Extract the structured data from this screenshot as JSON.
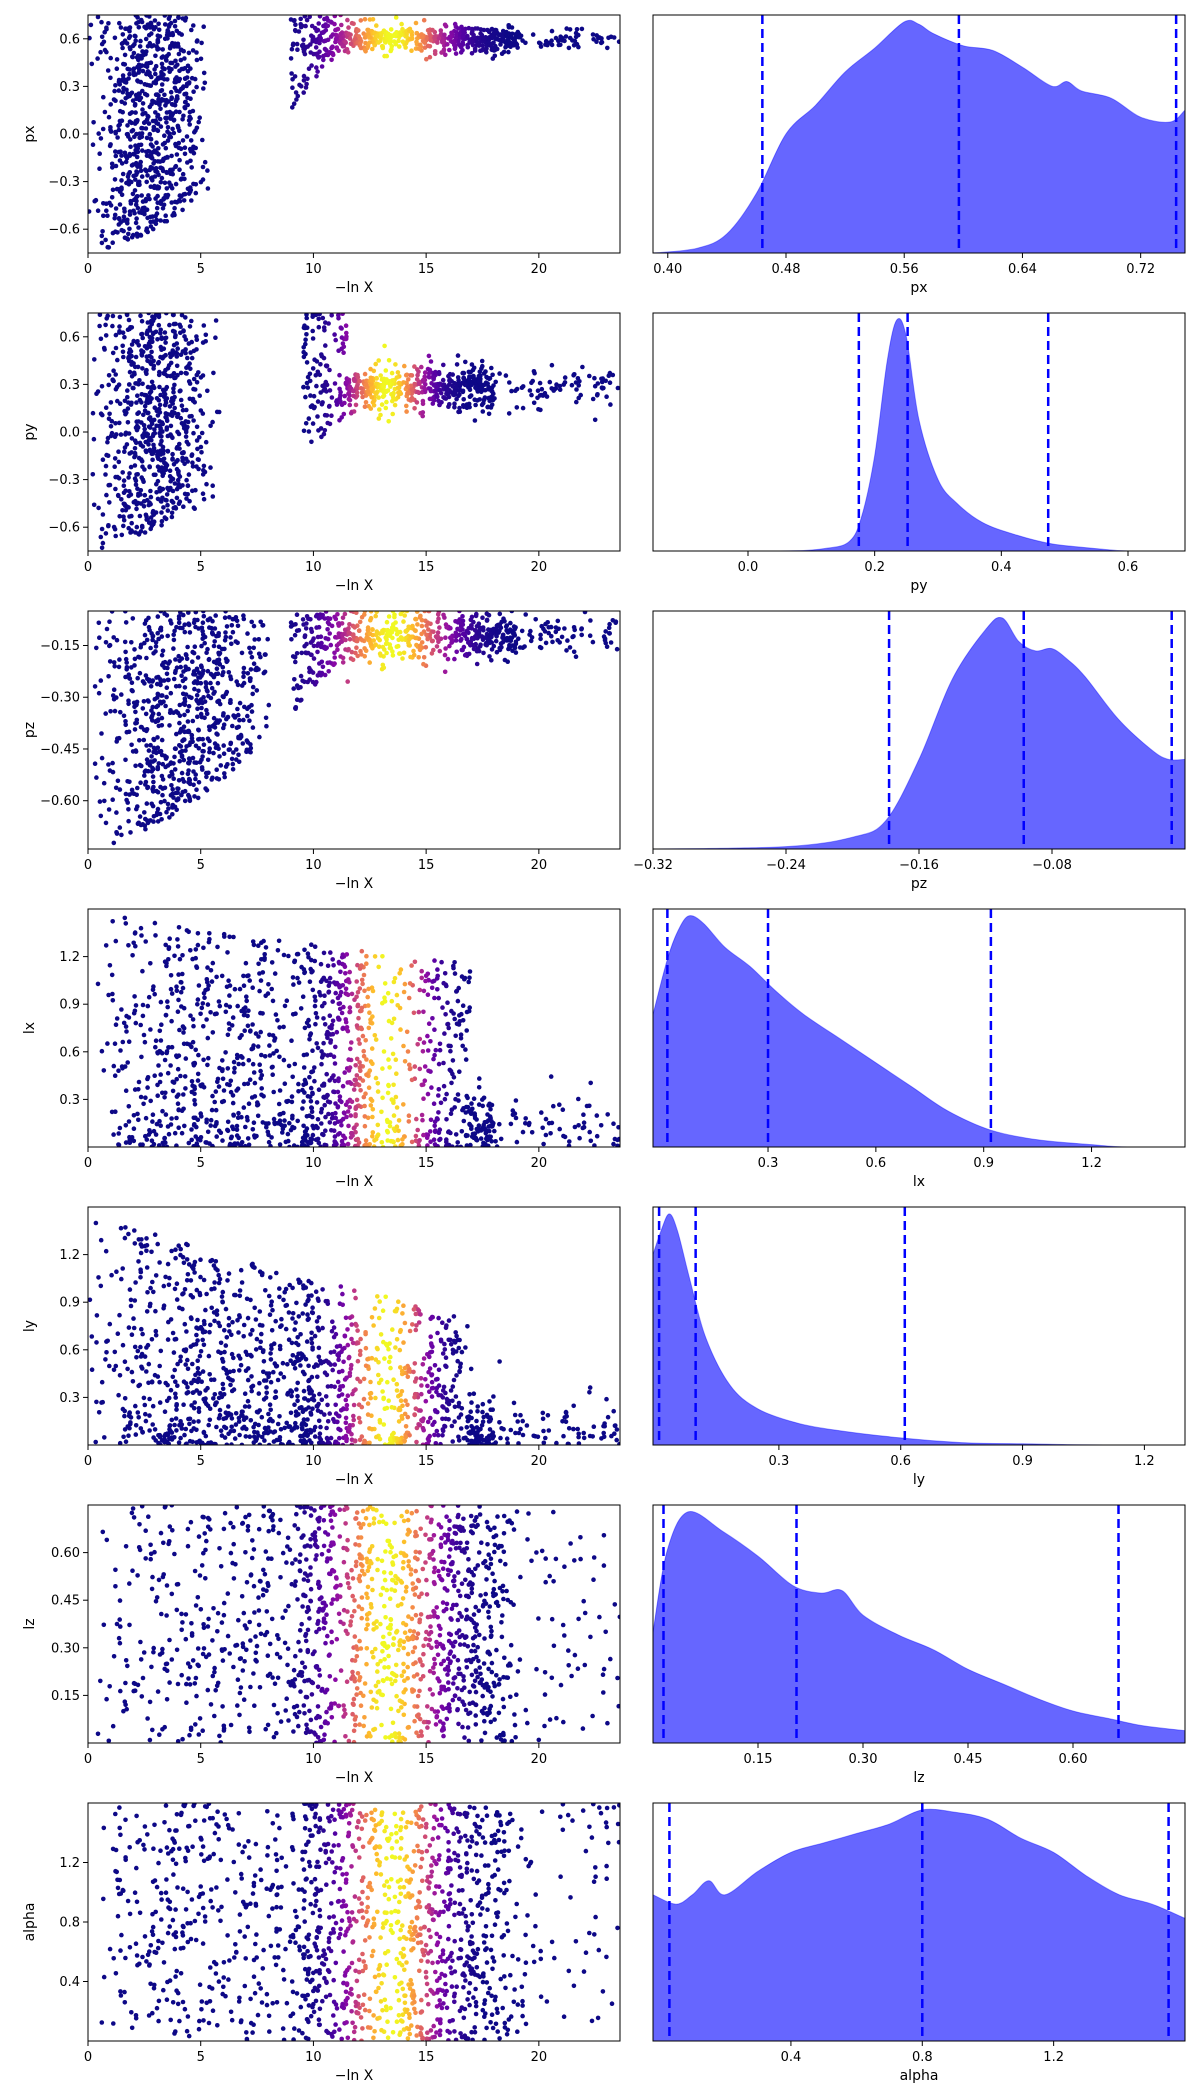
{
  "chart_data": [
    {
      "type": "scatter",
      "param": "px",
      "xlabel": "−ln X",
      "ylabel": "px",
      "xlim": [
        0,
        23.6
      ],
      "ylim": [
        -0.75,
        0.75
      ],
      "xticks": [
        0,
        5,
        10,
        15,
        20
      ],
      "xtick_labels": [
        "0",
        "5",
        "10",
        "15",
        "20"
      ],
      "yticks": [
        -0.6,
        -0.3,
        0.0,
        0.3,
        0.6
      ],
      "ytick_labels": [
        "−0.6",
        "−0.3",
        "0.0",
        "0.3",
        "0.6"
      ],
      "colormap": "plasma",
      "mode": "upper",
      "center": 0.6,
      "spread": 0.05,
      "lo": -0.75,
      "hi": 0.75,
      "heavy_x": 2.5,
      "bright_x": [
        11,
        16
      ],
      "tail_to": 23.6
    },
    {
      "type": "area",
      "param": "px",
      "xlabel": "px",
      "xlim": [
        0.39,
        0.75
      ],
      "xticks": [
        0.4,
        0.48,
        0.56,
        0.64,
        0.72
      ],
      "xtick_labels": [
        "0.40",
        "0.48",
        "0.56",
        "0.64",
        "0.72"
      ],
      "quantiles": [
        0.464,
        0.597,
        0.744
      ],
      "x": [
        0.39,
        0.42,
        0.44,
        0.46,
        0.48,
        0.5,
        0.52,
        0.54,
        0.56,
        0.57,
        0.58,
        0.6,
        0.62,
        0.64,
        0.66,
        0.67,
        0.68,
        0.7,
        0.72,
        0.74,
        0.75
      ],
      "y": [
        0.0,
        0.02,
        0.08,
        0.25,
        0.5,
        0.62,
        0.76,
        0.86,
        0.97,
        0.96,
        0.92,
        0.87,
        0.85,
        0.78,
        0.7,
        0.72,
        0.68,
        0.65,
        0.57,
        0.55,
        0.6
      ],
      "color": "#0000ff",
      "fill_opacity": 0.6
    },
    {
      "type": "scatter",
      "param": "py",
      "xlabel": "−ln X",
      "ylabel": "py",
      "xlim": [
        0,
        23.6
      ],
      "ylim": [
        -0.75,
        0.75
      ],
      "xticks": [
        0,
        5,
        10,
        15,
        20
      ],
      "xtick_labels": [
        "0",
        "5",
        "10",
        "15",
        "20"
      ],
      "yticks": [
        -0.6,
        -0.3,
        0.0,
        0.3,
        0.6
      ],
      "ytick_labels": [
        "−0.6",
        "−0.3",
        "0.0",
        "0.3",
        "0.6"
      ],
      "colormap": "plasma",
      "mode": "band",
      "center": 0.28,
      "spread": 0.07,
      "lo": -0.75,
      "hi": 0.75,
      "heavy_x": 3.0,
      "bright_x": [
        11.5,
        15
      ],
      "tail_to": 23.6
    },
    {
      "type": "area",
      "param": "py",
      "xlabel": "py",
      "xlim": [
        -0.15,
        0.69
      ],
      "xticks": [
        0.0,
        0.2,
        0.4,
        0.6
      ],
      "xtick_labels": [
        "0.0",
        "0.2",
        "0.4",
        "0.6"
      ],
      "quantiles": [
        0.175,
        0.252,
        0.474
      ],
      "x": [
        -0.15,
        0.05,
        0.12,
        0.16,
        0.18,
        0.2,
        0.22,
        0.235,
        0.25,
        0.27,
        0.3,
        0.33,
        0.37,
        0.42,
        0.48,
        0.55,
        0.6,
        0.69
      ],
      "y": [
        0.0,
        0.0,
        0.01,
        0.04,
        0.15,
        0.4,
        0.8,
        0.97,
        0.9,
        0.55,
        0.3,
        0.2,
        0.12,
        0.07,
        0.03,
        0.01,
        0.0,
        0.0
      ],
      "color": "#0000ff",
      "fill_opacity": 0.6
    },
    {
      "type": "scatter",
      "param": "pz",
      "xlabel": "−ln X",
      "ylabel": "pz",
      "xlim": [
        0,
        23.6
      ],
      "ylim": [
        -0.74,
        -0.05
      ],
      "xticks": [
        0,
        5,
        10,
        15,
        20
      ],
      "xtick_labels": [
        "0",
        "5",
        "10",
        "15",
        "20"
      ],
      "yticks": [
        -0.6,
        -0.45,
        -0.3,
        -0.15
      ],
      "ytick_labels": [
        "−0.60",
        "−0.45",
        "−0.30",
        "−0.15"
      ],
      "colormap": "plasma",
      "mode": "upper",
      "center": -0.12,
      "spread": 0.04,
      "lo": -0.74,
      "hi": -0.05,
      "heavy_x": 5.5,
      "bright_x": [
        11,
        16
      ],
      "tail_to": 23.6
    },
    {
      "type": "area",
      "param": "pz",
      "xlabel": "pz",
      "xlim": [
        -0.32,
        0.0
      ],
      "xticks": [
        -0.32,
        -0.24,
        -0.16,
        -0.08
      ],
      "xtick_labels": [
        "−0.32",
        "−0.24",
        "−0.16",
        "−0.08"
      ],
      "quantiles": [
        -0.178,
        -0.097,
        -0.008
      ],
      "x": [
        -0.32,
        -0.24,
        -0.2,
        -0.18,
        -0.16,
        -0.14,
        -0.12,
        -0.11,
        -0.1,
        -0.09,
        -0.08,
        -0.07,
        -0.06,
        -0.04,
        -0.02,
        -0.01,
        0.0
      ],
      "y": [
        0.0,
        0.01,
        0.05,
        0.12,
        0.38,
        0.72,
        0.93,
        0.98,
        0.88,
        0.84,
        0.85,
        0.8,
        0.73,
        0.55,
        0.42,
        0.38,
        0.38
      ],
      "color": "#0000ff",
      "fill_opacity": 0.6
    },
    {
      "type": "scatter",
      "param": "lx",
      "xlabel": "−ln X",
      "ylabel": "lx",
      "xlim": [
        0,
        23.6
      ],
      "ylim": [
        0,
        1.5
      ],
      "xticks": [
        0,
        5,
        10,
        15,
        20
      ],
      "xtick_labels": [
        "0",
        "5",
        "10",
        "15",
        "20"
      ],
      "yticks": [
        0.3,
        0.6,
        0.9,
        1.2
      ],
      "ytick_labels": [
        "0.3",
        "0.6",
        "0.9",
        "1.2"
      ],
      "colormap": "plasma",
      "mode": "lower",
      "center": 0.45,
      "spread": 0.3,
      "lo": 0.0,
      "hi": 1.5,
      "heavy_x": 11,
      "bright_x": [
        11.5,
        15
      ],
      "tail_to": 23.6
    },
    {
      "type": "area",
      "param": "lx",
      "xlabel": "lx",
      "xlim": [
        -0.02,
        1.46
      ],
      "xticks": [
        0.3,
        0.6,
        0.9,
        1.2
      ],
      "xtick_labels": [
        "0.3",
        "0.6",
        "0.9",
        "1.2"
      ],
      "quantiles": [
        0.02,
        0.3,
        0.92
      ],
      "x": [
        -0.02,
        0.02,
        0.05,
        0.08,
        0.12,
        0.18,
        0.25,
        0.32,
        0.4,
        0.5,
        0.6,
        0.7,
        0.8,
        0.92,
        1.05,
        1.2,
        1.3,
        1.46
      ],
      "y": [
        0.55,
        0.78,
        0.9,
        0.96,
        0.93,
        0.83,
        0.75,
        0.65,
        0.55,
        0.45,
        0.35,
        0.25,
        0.15,
        0.07,
        0.03,
        0.01,
        0.0,
        0.0
      ],
      "color": "#0000ff",
      "fill_opacity": 0.6
    },
    {
      "type": "scatter",
      "param": "ly",
      "xlabel": "−ln X",
      "ylabel": "ly",
      "xlim": [
        0,
        23.6
      ],
      "ylim": [
        0,
        1.5
      ],
      "xticks": [
        0,
        5,
        10,
        15,
        20
      ],
      "xtick_labels": [
        "0",
        "5",
        "10",
        "15",
        "20"
      ],
      "yticks": [
        0.3,
        0.6,
        0.9,
        1.2
      ],
      "ytick_labels": [
        "0.3",
        "0.6",
        "0.9",
        "1.2"
      ],
      "colormap": "plasma",
      "mode": "lower",
      "center": 0.1,
      "spread": 0.25,
      "lo": 0.0,
      "hi": 1.5,
      "heavy_x": 9,
      "bright_x": [
        11.5,
        15
      ],
      "tail_to": 23.6
    },
    {
      "type": "area",
      "param": "ly",
      "xlabel": "ly",
      "xlim": [
        -0.01,
        1.3
      ],
      "xticks": [
        0.3,
        0.6,
        0.9,
        1.2
      ],
      "xtick_labels": [
        "0.3",
        "0.6",
        "0.9",
        "1.2"
      ],
      "quantiles": [
        0.005,
        0.095,
        0.61
      ],
      "x": [
        -0.01,
        0.01,
        0.03,
        0.05,
        0.08,
        0.12,
        0.18,
        0.25,
        0.35,
        0.45,
        0.6,
        0.75,
        0.9,
        1.1,
        1.3
      ],
      "y": [
        0.8,
        0.9,
        0.97,
        0.9,
        0.7,
        0.45,
        0.25,
        0.15,
        0.09,
        0.06,
        0.03,
        0.01,
        0.005,
        0.0,
        0.0
      ],
      "color": "#0000ff",
      "fill_opacity": 0.6
    },
    {
      "type": "scatter",
      "param": "lz",
      "xlabel": "−ln X",
      "ylabel": "lz",
      "xlim": [
        0,
        23.6
      ],
      "ylim": [
        0,
        0.75
      ],
      "xticks": [
        0,
        5,
        10,
        15,
        20
      ],
      "xtick_labels": [
        "0",
        "5",
        "10",
        "15",
        "20"
      ],
      "yticks": [
        0.15,
        0.3,
        0.45,
        0.6
      ],
      "ytick_labels": [
        "0.15",
        "0.30",
        "0.45",
        "0.60"
      ],
      "colormap": "plasma",
      "mode": "uniform",
      "center": 0.3,
      "spread": 0.2,
      "lo": 0.0,
      "hi": 0.75,
      "heavy_x": 17,
      "bright_x": [
        11,
        15.5
      ],
      "tail_to": 23.6
    },
    {
      "type": "area",
      "param": "lz",
      "xlabel": "lz",
      "xlim": [
        0.0,
        0.76
      ],
      "xticks": [
        0.15,
        0.3,
        0.45,
        0.6
      ],
      "xtick_labels": [
        "0.15",
        "0.30",
        "0.45",
        "0.60"
      ],
      "quantiles": [
        0.015,
        0.205,
        0.665
      ],
      "x": [
        0.0,
        0.02,
        0.05,
        0.1,
        0.15,
        0.2,
        0.24,
        0.27,
        0.3,
        0.35,
        0.4,
        0.45,
        0.5,
        0.55,
        0.6,
        0.65,
        0.7,
        0.76
      ],
      "y": [
        0.45,
        0.78,
        0.94,
        0.86,
        0.76,
        0.64,
        0.61,
        0.62,
        0.52,
        0.44,
        0.38,
        0.3,
        0.24,
        0.18,
        0.13,
        0.1,
        0.07,
        0.05
      ],
      "color": "#0000ff",
      "fill_opacity": 0.6
    },
    {
      "type": "scatter",
      "param": "alpha",
      "xlabel": "−ln X",
      "ylabel": "alpha",
      "xlim": [
        0,
        23.6
      ],
      "ylim": [
        0,
        1.6
      ],
      "xticks": [
        0,
        5,
        10,
        15,
        20
      ],
      "xtick_labels": [
        "0",
        "5",
        "10",
        "15",
        "20"
      ],
      "yticks": [
        0.4,
        0.8,
        1.2
      ],
      "ytick_labels": [
        "0.4",
        "0.8",
        "1.2"
      ],
      "colormap": "plasma",
      "mode": "uniform",
      "center": 0.8,
      "spread": 0.5,
      "lo": 0.0,
      "hi": 1.6,
      "heavy_x": 17,
      "bright_x": [
        11.5,
        15.5
      ],
      "tail_to": 23.6
    },
    {
      "type": "area",
      "param": "alpha",
      "xlabel": "alpha",
      "xlim": [
        -0.02,
        1.6
      ],
      "xticks": [
        0.4,
        0.8,
        1.2
      ],
      "xtick_labels": [
        "0.4",
        "0.8",
        "1.2"
      ],
      "quantiles": [
        0.03,
        0.8,
        1.55
      ],
      "x": [
        -0.02,
        0.05,
        0.1,
        0.15,
        0.2,
        0.3,
        0.4,
        0.5,
        0.6,
        0.7,
        0.8,
        0.9,
        1.0,
        1.1,
        1.2,
        1.3,
        1.4,
        1.5,
        1.6
      ],
      "y": [
        0.62,
        0.58,
        0.62,
        0.68,
        0.62,
        0.72,
        0.8,
        0.84,
        0.88,
        0.92,
        0.98,
        0.97,
        0.94,
        0.86,
        0.8,
        0.7,
        0.62,
        0.58,
        0.52
      ],
      "color": "#0000ff",
      "fill_opacity": 0.6
    }
  ]
}
